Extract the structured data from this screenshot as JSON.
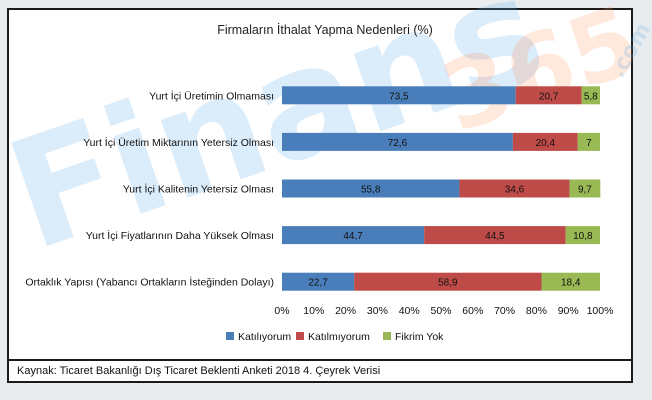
{
  "watermark": {
    "brand": "Finans",
    "number": "365",
    "suffix": ".com"
  },
  "source_note": "Kaynak: Ticaret Bakanlığı Dış Ticaret Beklenti Anketi 2018 4. Çeyrek Verisi",
  "chart_data": {
    "type": "bar",
    "orientation": "horizontal",
    "stacked": true,
    "title": "Firmaların İthalat Yapma Nedenleri (%)",
    "categories": [
      "Yurt İçi Üretimin Olmaması",
      "Yurt İçi Üretim Miktarının Yetersiz Olması",
      "Yurt İçi Kalitenin Yetersiz Olması",
      "Yurt İçi Fiyatlarının Daha Yüksek Olması",
      "Ortaklık Yapısı (Yabancı Ortakların İsteğinden Dolayı)"
    ],
    "series": [
      {
        "name": "Katılıyorum",
        "color": "#4a7ebb",
        "values": [
          73.5,
          72.6,
          55.8,
          44.7,
          22.7
        ],
        "labels": [
          "73,5",
          "72,6",
          "55,8",
          "44,7",
          "22,7"
        ]
      },
      {
        "name": "Katılmıyorum",
        "color": "#be4b48",
        "values": [
          20.7,
          20.4,
          34.6,
          44.5,
          58.9
        ],
        "labels": [
          "20,7",
          "20,4",
          "34,6",
          "44,5",
          "58,9"
        ]
      },
      {
        "name": "Fikrim Yok",
        "color": "#98b954",
        "values": [
          5.8,
          7,
          9.7,
          10.8,
          18.4
        ],
        "labels": [
          "5,8",
          "7",
          "9,7",
          "10,8",
          "18,4"
        ]
      }
    ],
    "xlim": [
      0,
      100
    ],
    "x_ticks": [
      "0%",
      "10%",
      "20%",
      "30%",
      "40%",
      "50%",
      "60%",
      "70%",
      "80%",
      "90%",
      "100%"
    ],
    "grid": false,
    "legend_position": "bottom"
  }
}
